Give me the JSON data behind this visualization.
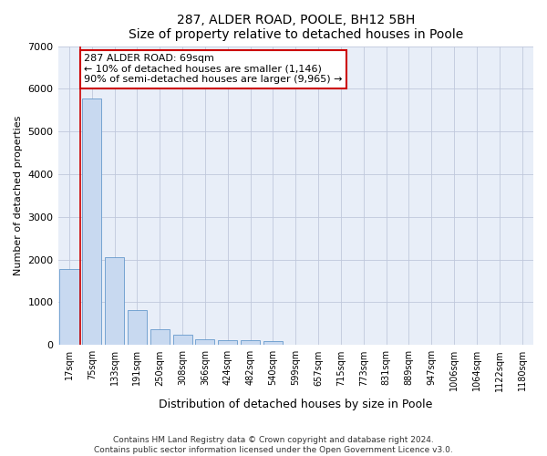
{
  "title1": "287, ALDER ROAD, POOLE, BH12 5BH",
  "title2": "Size of property relative to detached houses in Poole",
  "xlabel": "Distribution of detached houses by size in Poole",
  "ylabel": "Number of detached properties",
  "bar_color": "#c8d9f0",
  "bar_edge_color": "#6699cc",
  "categories": [
    "17sqm",
    "75sqm",
    "133sqm",
    "191sqm",
    "250sqm",
    "308sqm",
    "366sqm",
    "424sqm",
    "482sqm",
    "540sqm",
    "599sqm",
    "657sqm",
    "715sqm",
    "773sqm",
    "831sqm",
    "889sqm",
    "947sqm",
    "1006sqm",
    "1064sqm",
    "1122sqm",
    "1180sqm"
  ],
  "values": [
    1780,
    5780,
    2060,
    820,
    370,
    240,
    130,
    115,
    115,
    90,
    0,
    0,
    0,
    0,
    0,
    0,
    0,
    0,
    0,
    0,
    0
  ],
  "ylim": [
    0,
    7000
  ],
  "yticks": [
    0,
    1000,
    2000,
    3000,
    4000,
    5000,
    6000,
    7000
  ],
  "vline_x": 0.5,
  "vline_color": "#cc0000",
  "annotation_line1": "287 ALDER ROAD: 69sqm",
  "annotation_line2": "← 10% of detached houses are smaller (1,146)",
  "annotation_line3": "90% of semi-detached houses are larger (9,965) →",
  "annotation_box_facecolor": "#ffffff",
  "annotation_box_edgecolor": "#cc0000",
  "bg_color": "#e8eef8",
  "footer1": "Contains HM Land Registry data © Crown copyright and database right 2024.",
  "footer2": "Contains public sector information licensed under the Open Government Licence v3.0."
}
